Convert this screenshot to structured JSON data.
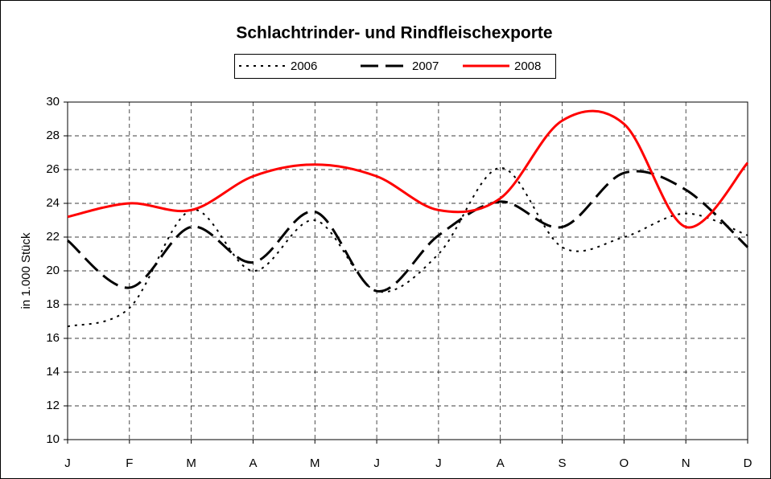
{
  "chart_data": {
    "type": "line",
    "title": "Schlachtrinder- und Rindfleischexporte",
    "y_label": "in 1.000 Stück",
    "categories": [
      "J",
      "F",
      "M",
      "A",
      "M",
      "J",
      "J",
      "A",
      "S",
      "O",
      "N",
      "D"
    ],
    "series": [
      {
        "name": "2006",
        "color": "#000000",
        "style": "dotted",
        "values": [
          16.7,
          17.8,
          23.6,
          20.0,
          23.0,
          18.8,
          21.0,
          26.1,
          21.4,
          22.0,
          23.4,
          22.1
        ]
      },
      {
        "name": "2007",
        "color": "#000000",
        "style": "dashed",
        "values": [
          21.8,
          19.0,
          22.6,
          20.5,
          23.5,
          18.8,
          22.1,
          24.1,
          22.6,
          25.8,
          24.8,
          21.4
        ]
      },
      {
        "name": "2008",
        "color": "#ff0000",
        "style": "solid",
        "values": [
          23.2,
          24.0,
          23.6,
          25.6,
          26.3,
          25.6,
          23.6,
          24.3,
          28.9,
          28.7,
          22.6,
          26.4
        ]
      }
    ],
    "ylim": [
      10,
      30
    ],
    "yticks": [
      10,
      12,
      14,
      16,
      18,
      20,
      22,
      24,
      26,
      28,
      30
    ],
    "grid": true,
    "smooth": true,
    "legend": "top"
  }
}
